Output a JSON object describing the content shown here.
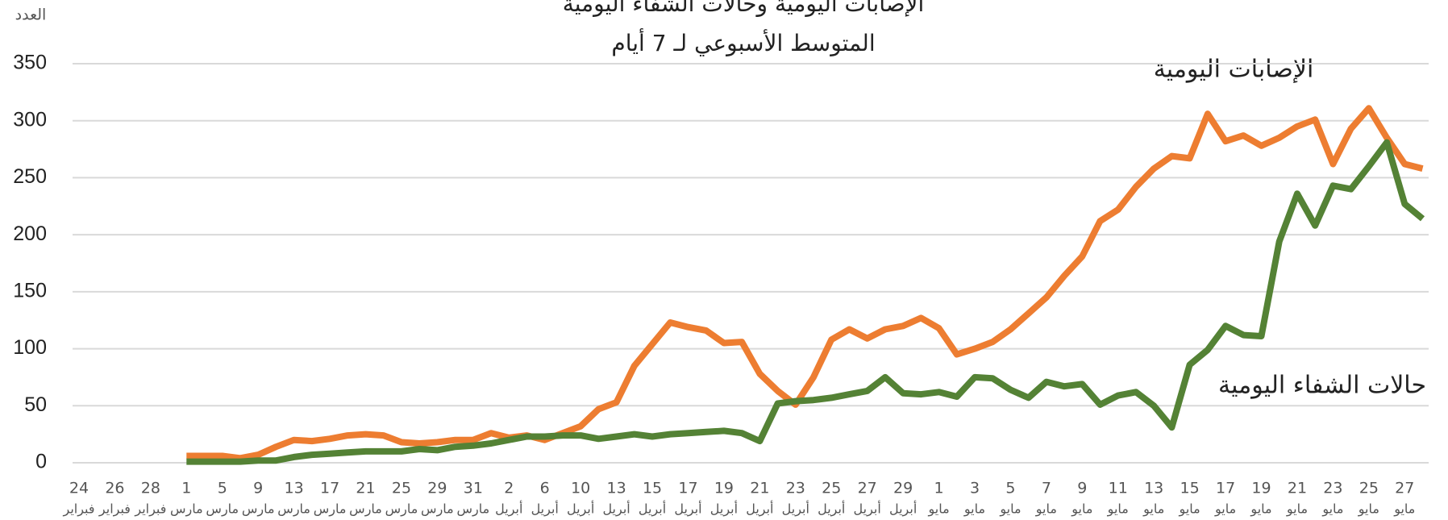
{
  "chart_data": {
    "type": "line",
    "title": "الإصابات اليومية وحالات الشفاء اليومية",
    "subtitle": "المتوسط الأسبوعي لـ 7 أيام",
    "y_label": "العدد",
    "categories": [
      "24",
      null,
      "26",
      null,
      "28",
      null,
      "1",
      null,
      "5",
      null,
      "9",
      null,
      "13",
      null,
      "17",
      null,
      "21",
      null,
      "25",
      null,
      "29",
      null,
      "31",
      null,
      "2",
      null,
      "6",
      null,
      "10",
      null,
      "13",
      null,
      "15",
      null,
      "17",
      null,
      "19",
      null,
      "21",
      null,
      "23",
      null,
      "25",
      null,
      "27",
      null,
      "29",
      null,
      "1",
      null,
      "3",
      null,
      "5",
      null,
      "7",
      null,
      "9",
      null,
      "11",
      null,
      "13",
      null,
      "15",
      null,
      "17",
      null,
      "19",
      null,
      "21",
      null,
      "23",
      null,
      "25",
      null,
      "27",
      null
    ],
    "category_months": [
      "فبراير",
      null,
      "فبراير",
      null,
      "فبراير",
      null,
      "مارس",
      null,
      "مارس",
      null,
      "مارس",
      null,
      "مارس",
      null,
      "مارس",
      null,
      "مارس",
      null,
      "مارس",
      null,
      "مارس",
      null,
      "مارس",
      null,
      "أبريل",
      null,
      "أبريل",
      null,
      "أبريل",
      null,
      "أبريل",
      null,
      "أبريل",
      null,
      "أبريل",
      null,
      "أبريل",
      null,
      "أبريل",
      null,
      "أبريل",
      null,
      "أبريل",
      null,
      "أبريل",
      null,
      "أبريل",
      null,
      "مايو",
      null,
      "مايو",
      null,
      "مايو",
      null,
      "مايو",
      null,
      "مايو",
      null,
      "مايو",
      null,
      "مايو",
      null,
      "مايو",
      null,
      "مايو",
      null,
      "مايو",
      null,
      "مايو",
      null,
      "مايو",
      null,
      "مايو",
      null,
      "مايو",
      null
    ],
    "series": [
      {
        "name": "الإصابات اليومية",
        "color": "#ED7D31",
        "values": [
          null,
          null,
          null,
          null,
          null,
          null,
          6,
          6,
          6,
          4,
          7,
          14,
          20,
          19,
          21,
          24,
          25,
          24,
          18,
          17,
          18,
          20,
          20,
          26,
          22,
          24,
          20,
          26,
          32,
          47,
          53,
          85,
          104,
          123,
          119,
          116,
          105,
          106,
          78,
          63,
          51,
          75,
          108,
          117,
          109,
          117,
          120,
          127,
          118,
          95,
          100,
          106,
          117,
          131,
          145,
          164,
          181,
          212,
          222,
          242,
          258,
          269,
          267,
          306,
          282,
          287,
          278,
          285,
          295,
          301,
          262,
          293,
          311,
          285,
          262,
          258
        ]
      },
      {
        "name": "حالات الشفاء اليومية",
        "color": "#548235",
        "values": [
          null,
          null,
          null,
          null,
          null,
          null,
          1,
          1,
          1,
          1,
          2,
          2,
          5,
          7,
          8,
          9,
          10,
          10,
          10,
          12,
          11,
          14,
          15,
          17,
          20,
          23,
          23,
          24,
          24,
          21,
          23,
          25,
          23,
          25,
          26,
          27,
          28,
          26,
          19,
          52,
          54,
          55,
          57,
          60,
          63,
          75,
          61,
          60,
          62,
          58,
          75,
          74,
          64,
          57,
          71,
          67,
          69,
          51,
          59,
          62,
          50,
          31,
          86,
          99,
          120,
          112,
          111,
          194,
          236,
          208,
          243,
          240,
          260,
          281,
          227,
          214
        ]
      }
    ],
    "ylim": [
      0,
      350
    ],
    "yticks": [
      0,
      50,
      100,
      150,
      200,
      250,
      300,
      350
    ],
    "grid": true
  }
}
